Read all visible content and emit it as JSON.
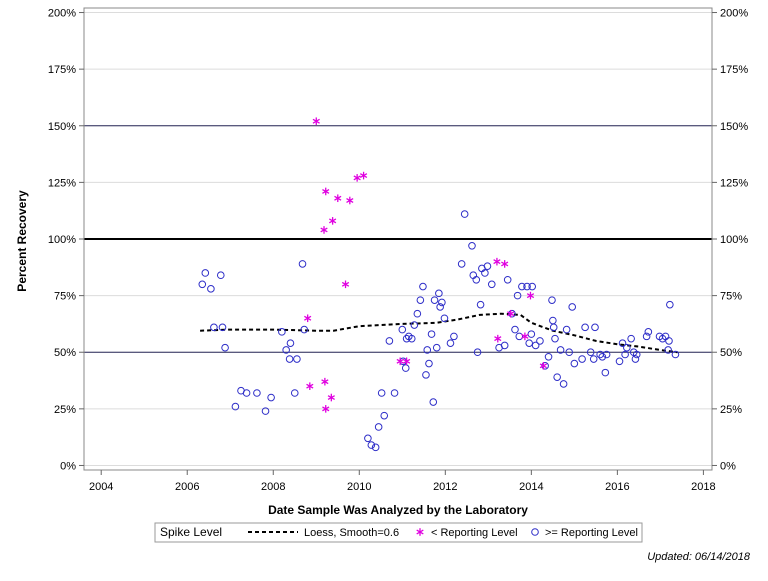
{
  "chart_data": {
    "type": "scatter",
    "xlabel": "Date Sample Was Analyzed by the Laboratory",
    "ylabel": "Percent Recovery",
    "xlim": [
      2003.6,
      2018.2
    ],
    "ylim": [
      -2,
      202
    ],
    "x_ticks": [
      2004,
      2006,
      2008,
      2010,
      2012,
      2014,
      2016,
      2018
    ],
    "y_ticks": [
      0,
      25,
      50,
      75,
      100,
      125,
      150,
      175,
      200
    ],
    "y_tick_labels": [
      "0%",
      "25%",
      "50%",
      "75%",
      "100%",
      "125%",
      "150%",
      "175%",
      "200%"
    ],
    "reference_lines": [
      {
        "y": 150,
        "style": "thin"
      },
      {
        "y": 100,
        "style": "thick"
      },
      {
        "y": 50,
        "style": "thin"
      }
    ],
    "legend": {
      "title": "Spike Level",
      "entries": [
        {
          "label": "Loess, Smooth=0.6",
          "kind": "dashed-line"
        },
        {
          "label": "< Reporting Level",
          "kind": "star"
        },
        {
          "label": ">= Reporting Level",
          "kind": "circle"
        }
      ]
    },
    "footnote": "Updated: 06/14/2018",
    "colors": {
      "circle": "#2e2ec8",
      "star": "#e000e0",
      "loess": "#000000",
      "ref_line": "#2a2a5a",
      "frame": "#888888",
      "grid": "#dcdcdc"
    },
    "series": [
      {
        "name": ">= Reporting Level",
        "marker": "circle",
        "points": [
          [
            2006.35,
            80
          ],
          [
            2006.42,
            85
          ],
          [
            2006.55,
            78
          ],
          [
            2006.62,
            61
          ],
          [
            2006.78,
            84
          ],
          [
            2006.82,
            61
          ],
          [
            2006.88,
            52
          ],
          [
            2007.12,
            26
          ],
          [
            2007.25,
            33
          ],
          [
            2007.38,
            32
          ],
          [
            2007.62,
            32
          ],
          [
            2007.82,
            24
          ],
          [
            2007.95,
            30
          ],
          [
            2008.2,
            59
          ],
          [
            2008.3,
            51
          ],
          [
            2008.38,
            47
          ],
          [
            2008.4,
            54
          ],
          [
            2008.5,
            32
          ],
          [
            2008.55,
            47
          ],
          [
            2008.68,
            89
          ],
          [
            2008.72,
            60
          ],
          [
            2010.2,
            12
          ],
          [
            2010.28,
            9
          ],
          [
            2010.38,
            8
          ],
          [
            2010.45,
            17
          ],
          [
            2010.52,
            32
          ],
          [
            2010.58,
            22
          ],
          [
            2010.7,
            55
          ],
          [
            2010.82,
            32
          ],
          [
            2011.0,
            60
          ],
          [
            2011.02,
            46
          ],
          [
            2011.08,
            43
          ],
          [
            2011.1,
            56
          ],
          [
            2011.15,
            57
          ],
          [
            2011.22,
            56
          ],
          [
            2011.28,
            62
          ],
          [
            2011.35,
            67
          ],
          [
            2011.42,
            73
          ],
          [
            2011.48,
            79
          ],
          [
            2011.55,
            40
          ],
          [
            2011.58,
            51
          ],
          [
            2011.62,
            45
          ],
          [
            2011.68,
            58
          ],
          [
            2011.72,
            28
          ],
          [
            2011.75,
            73
          ],
          [
            2011.8,
            52
          ],
          [
            2011.85,
            76
          ],
          [
            2011.88,
            70
          ],
          [
            2011.92,
            72
          ],
          [
            2011.98,
            65
          ],
          [
            2012.12,
            54
          ],
          [
            2012.2,
            57
          ],
          [
            2012.38,
            89
          ],
          [
            2012.45,
            111
          ],
          [
            2012.62,
            97
          ],
          [
            2012.65,
            84
          ],
          [
            2012.72,
            82
          ],
          [
            2012.75,
            50
          ],
          [
            2012.82,
            71
          ],
          [
            2012.85,
            87
          ],
          [
            2012.92,
            85
          ],
          [
            2012.98,
            88
          ],
          [
            2013.08,
            80
          ],
          [
            2013.25,
            52
          ],
          [
            2013.38,
            53
          ],
          [
            2013.45,
            82
          ],
          [
            2013.55,
            67
          ],
          [
            2013.62,
            60
          ],
          [
            2013.68,
            75
          ],
          [
            2013.72,
            57
          ],
          [
            2013.78,
            79
          ],
          [
            2013.9,
            79
          ],
          [
            2013.95,
            54
          ],
          [
            2014.0,
            58
          ],
          [
            2014.02,
            79
          ],
          [
            2014.1,
            53
          ],
          [
            2014.2,
            55
          ],
          [
            2014.32,
            44
          ],
          [
            2014.4,
            48
          ],
          [
            2014.48,
            73
          ],
          [
            2014.5,
            64
          ],
          [
            2014.52,
            61
          ],
          [
            2014.55,
            56
          ],
          [
            2014.6,
            39
          ],
          [
            2014.68,
            51
          ],
          [
            2014.75,
            36
          ],
          [
            2014.82,
            60
          ],
          [
            2014.88,
            50
          ],
          [
            2014.95,
            70
          ],
          [
            2015.0,
            45
          ],
          [
            2015.18,
            47
          ],
          [
            2015.25,
            61
          ],
          [
            2015.38,
            50
          ],
          [
            2015.45,
            47
          ],
          [
            2015.48,
            61
          ],
          [
            2015.6,
            49
          ],
          [
            2015.65,
            48
          ],
          [
            2015.72,
            41
          ],
          [
            2015.75,
            49
          ],
          [
            2016.05,
            46
          ],
          [
            2016.12,
            54
          ],
          [
            2016.18,
            49
          ],
          [
            2016.22,
            52
          ],
          [
            2016.32,
            56
          ],
          [
            2016.38,
            50
          ],
          [
            2016.42,
            47
          ],
          [
            2016.45,
            49
          ],
          [
            2016.68,
            57
          ],
          [
            2016.72,
            59
          ],
          [
            2016.98,
            57
          ],
          [
            2017.05,
            56
          ],
          [
            2017.12,
            57
          ],
          [
            2017.18,
            51
          ],
          [
            2017.2,
            55
          ],
          [
            2017.22,
            71
          ],
          [
            2017.35,
            49
          ]
        ]
      },
      {
        "name": "< Reporting Level",
        "marker": "star",
        "points": [
          [
            2008.8,
            65
          ],
          [
            2008.85,
            35
          ],
          [
            2009.0,
            152
          ],
          [
            2009.18,
            104
          ],
          [
            2009.22,
            121
          ],
          [
            2009.22,
            25
          ],
          [
            2009.2,
            37
          ],
          [
            2009.35,
            30
          ],
          [
            2009.38,
            108
          ],
          [
            2009.5,
            118
          ],
          [
            2009.68,
            80
          ],
          [
            2009.78,
            117
          ],
          [
            2009.95,
            127
          ],
          [
            2010.1,
            128
          ],
          [
            2010.95,
            46
          ],
          [
            2011.1,
            46
          ],
          [
            2013.2,
            90
          ],
          [
            2013.22,
            56
          ],
          [
            2013.38,
            89
          ],
          [
            2013.52,
            67
          ],
          [
            2013.85,
            57
          ],
          [
            2013.98,
            75
          ],
          [
            2014.28,
            44
          ]
        ]
      },
      {
        "name": "Loess, Smooth=0.6",
        "marker": "line",
        "points": [
          [
            2006.3,
            59.5
          ],
          [
            2007.0,
            60
          ],
          [
            2008.0,
            60
          ],
          [
            2009.0,
            59.5
          ],
          [
            2009.4,
            59.5
          ],
          [
            2010.0,
            61.5
          ],
          [
            2011.0,
            62.5
          ],
          [
            2011.8,
            63
          ],
          [
            2012.3,
            64.5
          ],
          [
            2012.8,
            66.5
          ],
          [
            2013.3,
            67
          ],
          [
            2013.75,
            66.5
          ],
          [
            2014.0,
            63
          ],
          [
            2014.5,
            59.5
          ],
          [
            2015.0,
            57.5
          ],
          [
            2015.5,
            55
          ],
          [
            2016.0,
            53.5
          ],
          [
            2016.5,
            52.5
          ],
          [
            2017.0,
            51
          ],
          [
            2017.4,
            50
          ]
        ]
      }
    ]
  }
}
